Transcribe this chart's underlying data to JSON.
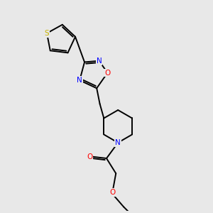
{
  "background_color": "#e8e8e8",
  "bond_color": "#000000",
  "atom_colors": {
    "S": "#c8b400",
    "N": "#0000ff",
    "O": "#ff0000",
    "C": "#000000"
  },
  "figsize": [
    3.0,
    3.0
  ],
  "dpi": 100
}
